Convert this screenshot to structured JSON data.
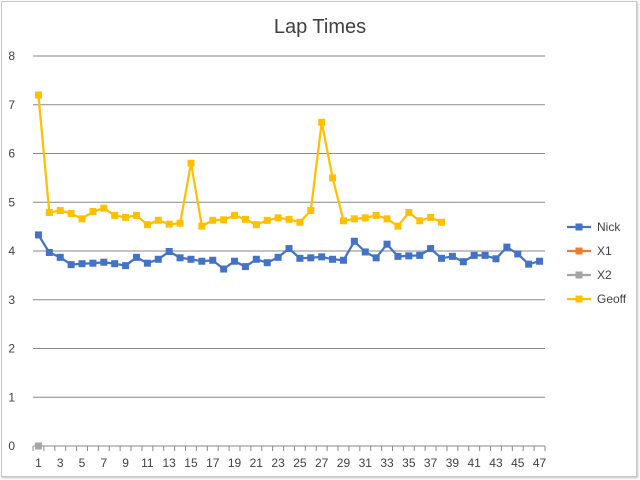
{
  "chart_data": {
    "type": "line",
    "title": "Lap Times",
    "xlabel": "",
    "ylabel": "",
    "ylim": [
      0,
      8
    ],
    "y_ticks": [
      0,
      1,
      2,
      3,
      4,
      5,
      6,
      7,
      8
    ],
    "x_range": [
      1,
      47
    ],
    "x_tick_labels": [
      1,
      3,
      5,
      7,
      9,
      11,
      13,
      15,
      17,
      19,
      21,
      23,
      25,
      27,
      29,
      31,
      33,
      35,
      37,
      39,
      41,
      43,
      45,
      47
    ],
    "grid": "horizontal",
    "legend_position": "right",
    "series": [
      {
        "name": "Nick",
        "color": "#4472C4",
        "marker": "square",
        "x": [
          1,
          2,
          3,
          4,
          5,
          6,
          7,
          8,
          9,
          10,
          11,
          12,
          13,
          14,
          15,
          16,
          17,
          18,
          19,
          20,
          21,
          22,
          23,
          24,
          25,
          26,
          27,
          28,
          29,
          30,
          31,
          32,
          33,
          34,
          35,
          36,
          37,
          38,
          39,
          40,
          41,
          42,
          43,
          44,
          45,
          46,
          47
        ],
        "y": [
          4.33,
          3.97,
          3.87,
          3.72,
          3.74,
          3.75,
          3.77,
          3.74,
          3.7,
          3.87,
          3.75,
          3.83,
          3.99,
          3.86,
          3.83,
          3.79,
          3.81,
          3.63,
          3.79,
          3.68,
          3.83,
          3.76,
          3.87,
          4.05,
          3.85,
          3.86,
          3.88,
          3.83,
          3.81,
          4.2,
          3.98,
          3.86,
          4.14,
          3.89,
          3.9,
          3.91,
          4.05,
          3.85,
          3.89,
          3.78,
          3.91,
          3.91,
          3.84,
          4.08,
          3.94,
          3.73,
          3.79
        ]
      },
      {
        "name": "X1",
        "color": "#ED7D31",
        "marker": "square",
        "x": [],
        "y": []
      },
      {
        "name": "X2",
        "color": "#A5A5A5",
        "marker": "square",
        "x": [
          1
        ],
        "y": [
          0
        ]
      },
      {
        "name": "Geoff",
        "color": "#FFC000",
        "marker": "square",
        "x": [
          1,
          2,
          3,
          4,
          5,
          6,
          7,
          8,
          9,
          10,
          11,
          12,
          13,
          14,
          15,
          16,
          17,
          18,
          19,
          20,
          21,
          22,
          23,
          24,
          25,
          26,
          27,
          28,
          29,
          30,
          31,
          32,
          33,
          34,
          35,
          36,
          37,
          38
        ],
        "y": [
          7.2,
          4.79,
          4.83,
          4.77,
          4.66,
          4.81,
          4.88,
          4.73,
          4.69,
          4.73,
          4.54,
          4.63,
          4.55,
          4.57,
          5.8,
          4.51,
          4.63,
          4.64,
          4.73,
          4.65,
          4.54,
          4.63,
          4.68,
          4.65,
          4.59,
          4.83,
          6.64,
          5.5,
          4.62,
          4.66,
          4.68,
          4.73,
          4.66,
          4.51,
          4.79,
          4.62,
          4.69,
          4.59
        ]
      }
    ]
  }
}
